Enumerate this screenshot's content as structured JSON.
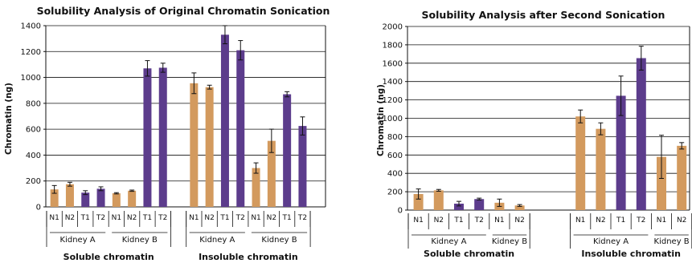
{
  "chart_data": [
    {
      "type": "bar",
      "title": "Solubility Analysis of Original Chromatin Sonication",
      "ylabel": "Chromatin (ng)",
      "ylim": [
        0,
        1400
      ],
      "yticks": [
        0,
        200,
        400,
        600,
        800,
        1000,
        1200,
        1400
      ],
      "grid": true,
      "categories": [
        "N1",
        "N2",
        "T1",
        "T2",
        "N1",
        "N2",
        "T1",
        "T2",
        "N1",
        "N2",
        "T1",
        "T2",
        "N1",
        "N2",
        "T1",
        "T2"
      ],
      "values": [
        135,
        175,
        110,
        140,
        105,
        125,
        1070,
        1075,
        955,
        925,
        1330,
        1210,
        300,
        510,
        870,
        625
      ],
      "errors": [
        30,
        15,
        15,
        15,
        5,
        5,
        60,
        35,
        80,
        15,
        70,
        75,
        40,
        90,
        20,
        70
      ],
      "groups": [
        {
          "label": "Kidney A",
          "section": 0
        },
        {
          "label": "Kidney B",
          "section": 0
        },
        {
          "label": "Kidney A",
          "section": 1
        },
        {
          "label": "Kidney B",
          "section": 1
        }
      ],
      "sections": [
        "Soluble chromatin",
        "Insoluble chromatin"
      ],
      "colors": {
        "normal": "#d39a5e",
        "tumor": "#5c3c8c"
      }
    },
    {
      "type": "bar",
      "title": "Solubility Analysis after Second Sonication",
      "ylabel": "Chromatin (ng)",
      "ylim": [
        0,
        2000
      ],
      "yticks": [
        0,
        200,
        400,
        600,
        800,
        1000,
        1200,
        1400,
        1600,
        1800,
        2000
      ],
      "grid": true,
      "categories": [
        "N1",
        "N2",
        "T1",
        "T2",
        "N1",
        "N2",
        "N1",
        "N2",
        "T1",
        "T2",
        "N1",
        "N2"
      ],
      "values": [
        175,
        215,
        70,
        120,
        80,
        50,
        1020,
        885,
        1245,
        1655,
        580,
        700
      ],
      "errors": [
        55,
        10,
        25,
        10,
        40,
        10,
        70,
        65,
        215,
        130,
        235,
        35
      ],
      "groups": [
        {
          "label": "Kidney A",
          "section": 0
        },
        {
          "label": "Kidney B",
          "section": 0
        },
        {
          "label": "Kidney A",
          "section": 1
        },
        {
          "label": "Kidney B",
          "section": 1
        }
      ],
      "sections": [
        "Soluble chromatin",
        "Insoluble chromatin"
      ],
      "colors": {
        "normal": "#d39a5e",
        "tumor": "#5c3c8c"
      }
    }
  ]
}
